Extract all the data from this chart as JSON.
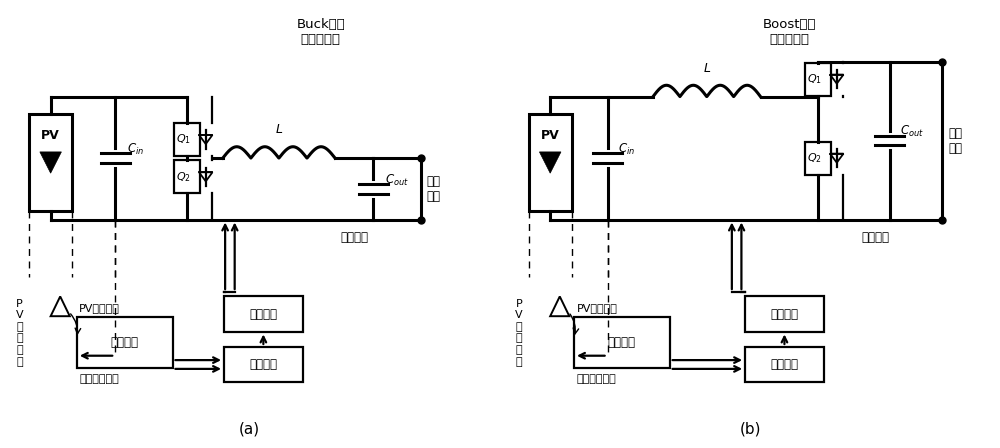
{
  "bg_color": "#ffffff",
  "fig_width": 10.0,
  "fig_height": 4.48,
  "title_a": "Buck拓扑\n光伏优化器",
  "title_b": "Boost拓扑\n光伏优化器",
  "label_a": "(a)",
  "label_b": "(b)"
}
